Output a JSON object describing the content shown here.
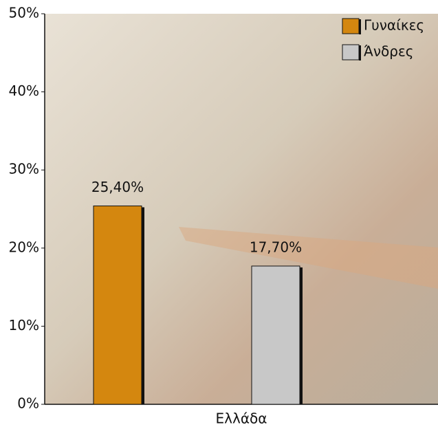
{
  "chart_data": {
    "type": "bar",
    "categories": [
      "Ελλάδα"
    ],
    "series": [
      {
        "name": "Γυναίκες",
        "color": "#d4870f",
        "values": [
          25.4
        ],
        "value_labels": [
          "25,40%"
        ]
      },
      {
        "name": "Άνδρες",
        "color": "#c8c8c8",
        "values": [
          17.7
        ],
        "value_labels": [
          "17,70%"
        ]
      }
    ],
    "ylim": [
      0,
      50
    ],
    "yticks": [
      {
        "value": 0,
        "label": "0%"
      },
      {
        "value": 10,
        "label": "10%"
      },
      {
        "value": 20,
        "label": "20%"
      },
      {
        "value": 30,
        "label": "30%"
      },
      {
        "value": 40,
        "label": "40%"
      },
      {
        "value": 50,
        "label": "50%"
      }
    ],
    "legend": "top-right"
  }
}
